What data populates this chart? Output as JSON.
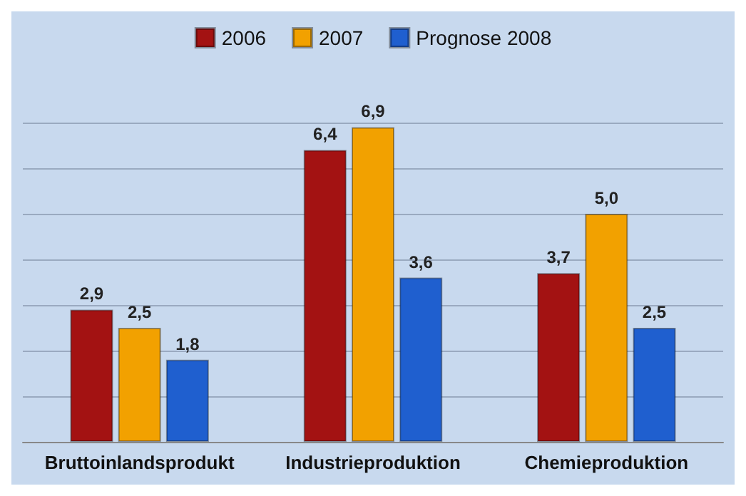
{
  "chart_data": {
    "type": "bar",
    "categories": [
      "Bruttoinlandsprodukt",
      "Industrieproduktion",
      "Chemieproduktion"
    ],
    "series": [
      {
        "name": "2006",
        "color": "#a31212",
        "values": [
          2.9,
          6.4,
          3.7
        ],
        "value_labels": [
          "2,9",
          "6,4",
          "3,7"
        ]
      },
      {
        "name": "2007",
        "color": "#f2a100",
        "values": [
          2.5,
          6.9,
          5.0
        ],
        "value_labels": [
          "2,5",
          "6,9",
          "5,0"
        ]
      },
      {
        "name": "Prognose 2008",
        "color": "#1f5fcf",
        "values": [
          1.8,
          3.6,
          2.5
        ],
        "value_labels": [
          "1,8",
          "3,6",
          "2,5"
        ]
      }
    ],
    "ylim": [
      0,
      7
    ],
    "yticks": [
      {
        "value": 0,
        "label": null
      },
      {
        "value": 1,
        "label": null
      },
      {
        "value": 2,
        "label": null
      },
      {
        "value": 3,
        "label": null
      },
      {
        "value": 4,
        "label": null
      },
      {
        "value": 5,
        "label": null
      },
      {
        "value": 6,
        "label": null
      },
      {
        "value": 7,
        "label": null
      }
    ],
    "grid": "y",
    "legend": "top",
    "tick_labels": "x"
  }
}
